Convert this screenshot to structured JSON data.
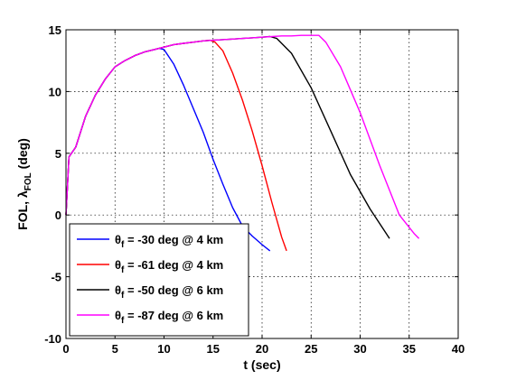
{
  "chart_data": {
    "type": "line",
    "xlabel": "t (sec)",
    "ylabel": "FOL, λ",
    "ylabel_sub": "FOL",
    "ylabel_suffix": " (deg)",
    "xlim": [
      0,
      40
    ],
    "ylim": [
      -10,
      15
    ],
    "xticks": [
      0,
      5,
      10,
      15,
      20,
      25,
      30,
      35,
      40
    ],
    "yticks": [
      -10,
      -5,
      0,
      5,
      10,
      15
    ],
    "grid": true,
    "legend_position": "bottom-left",
    "series": [
      {
        "name": "θf = -30 deg @ 4 km",
        "legend_symbol": "θ",
        "legend_sub": "f",
        "legend_rest": " = -30 deg @ 4 km",
        "color": "#0000ff",
        "x": [
          0,
          0.3,
          1,
          2,
          3,
          4,
          5,
          6,
          7,
          8,
          9,
          9.5,
          10,
          11,
          12,
          13,
          14,
          15,
          16,
          17,
          18,
          19,
          20,
          20.8
        ],
        "y": [
          0,
          4.7,
          5.5,
          8.0,
          9.7,
          11.0,
          12.0,
          12.5,
          12.9,
          13.2,
          13.4,
          13.5,
          13.4,
          12.2,
          10.5,
          8.6,
          6.7,
          4.5,
          2.5,
          0.6,
          -0.9,
          -1.7,
          -2.4,
          -2.9
        ]
      },
      {
        "name": "θf = -61 deg @ 4 km",
        "legend_symbol": "θ",
        "legend_sub": "f",
        "legend_rest": " = -61 deg @ 4 km",
        "color": "#ff0000",
        "x": [
          0,
          0.3,
          1,
          2,
          3,
          4,
          5,
          6,
          7,
          8,
          9,
          10,
          11,
          12,
          13,
          14,
          14.7,
          15.2,
          16,
          17,
          18,
          19,
          20,
          21,
          22,
          22.5
        ],
        "y": [
          0,
          4.7,
          5.5,
          8.0,
          9.7,
          11.0,
          12.0,
          12.5,
          12.9,
          13.2,
          13.4,
          13.6,
          13.8,
          13.9,
          14.0,
          14.1,
          14.15,
          14.0,
          13.3,
          11.5,
          9.3,
          6.8,
          4.0,
          1.0,
          -1.8,
          -2.9
        ]
      },
      {
        "name": "θf = -50 deg @ 6 km",
        "legend_symbol": "θ",
        "legend_sub": "f",
        "legend_rest": " = -50 deg @ 6 km",
        "color": "#000000",
        "x": [
          0,
          0.3,
          1,
          2,
          3,
          4,
          5,
          6,
          7,
          8,
          9,
          10,
          11,
          12,
          13,
          14,
          15,
          16,
          17,
          18,
          19,
          20,
          20.8,
          21.5,
          23,
          25,
          27,
          29,
          31,
          33
        ],
        "y": [
          0,
          4.7,
          5.5,
          8.0,
          9.7,
          11.0,
          12.0,
          12.5,
          12.9,
          13.2,
          13.4,
          13.6,
          13.8,
          13.9,
          14.0,
          14.1,
          14.15,
          14.2,
          14.25,
          14.3,
          14.35,
          14.4,
          14.45,
          14.3,
          13.1,
          10.3,
          6.8,
          3.3,
          0.5,
          -1.9
        ]
      },
      {
        "name": "θf = -87 deg @ 6 km",
        "legend_symbol": "θ",
        "legend_sub": "f",
        "legend_rest": " = -87 deg @ 6 km",
        "color": "#ff00ff",
        "x": [
          0,
          0.3,
          1,
          2,
          3,
          4,
          5,
          6,
          7,
          8,
          9,
          10,
          11,
          12,
          13,
          14,
          15,
          16,
          17,
          18,
          19,
          20,
          21,
          22,
          23,
          24,
          25,
          25.8,
          26.5,
          28,
          30,
          32,
          34,
          35.5,
          36
        ],
        "y": [
          0,
          4.7,
          5.5,
          8.0,
          9.7,
          11.0,
          12.0,
          12.5,
          12.9,
          13.2,
          13.4,
          13.6,
          13.8,
          13.9,
          14.0,
          14.1,
          14.15,
          14.2,
          14.25,
          14.3,
          14.35,
          14.4,
          14.45,
          14.5,
          14.5,
          14.55,
          14.55,
          14.55,
          14.0,
          12.0,
          8.3,
          4.0,
          0.0,
          -1.5,
          -1.9
        ]
      }
    ]
  }
}
